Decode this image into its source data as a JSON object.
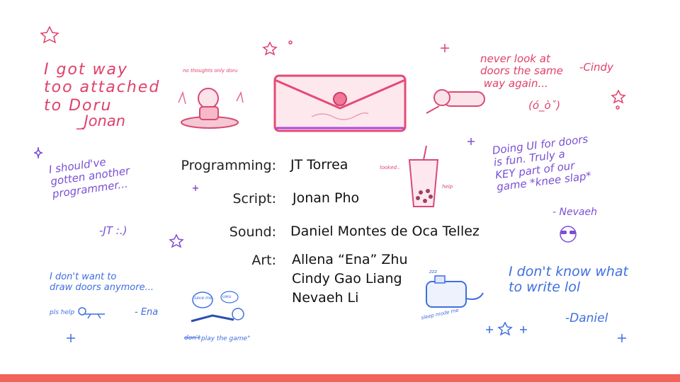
{
  "credits": [
    {
      "role": "Programming:",
      "names": [
        "JT Torrea"
      ]
    },
    {
      "role": "Script:",
      "names": [
        "Jonan Pho"
      ]
    },
    {
      "role": "Sound:",
      "names": [
        "Daniel Montes de Oca Tellez"
      ]
    },
    {
      "role": "Art:",
      "names": [
        "Allena “Ena” Zhu",
        "Cindy Gao Liang",
        "Nevaeh Li"
      ]
    }
  ],
  "notes": {
    "jonan": {
      "text": "I got way\ntoo attached\nto Doru",
      "sig": "_Jonan"
    },
    "cindy": {
      "text": "never look at\ndoors the same\n way again...",
      "sig": "-Cindy",
      "face": "(ó_òˇ)"
    },
    "jt": {
      "text": "I should've\ngotten another\nprogrammer...",
      "sig": "-JT :.)"
    },
    "nevaeh": {
      "text": "Doing UI for doors\nis fun. Truly a\nKEY part of our\ngame *knee slap*",
      "sig": "- Nevaeh"
    },
    "ena": {
      "text": "I don't want to\ndraw doors anymore...",
      "sig": "- Ena",
      "extra": "pls help"
    },
    "daniel": {
      "text": "I don't know what\nto write lol",
      "sig": "-Daniel"
    }
  },
  "doodles": {
    "doru_caption": "no thoughts only doru",
    "boba_left": "tooked..",
    "boba_right": "help",
    "toaster_caption": "sleep mode me",
    "toaster_zzz": "zzz",
    "play_caption": "play the game\"",
    "play_struck": "don't",
    "bubble_1": "save me..",
    "bubble_2": "uwu"
  },
  "colors": {
    "footer": "#f0645a",
    "pink": "#e0406a",
    "purple": "#7a4fd6",
    "blue": "#3f6fe0"
  }
}
